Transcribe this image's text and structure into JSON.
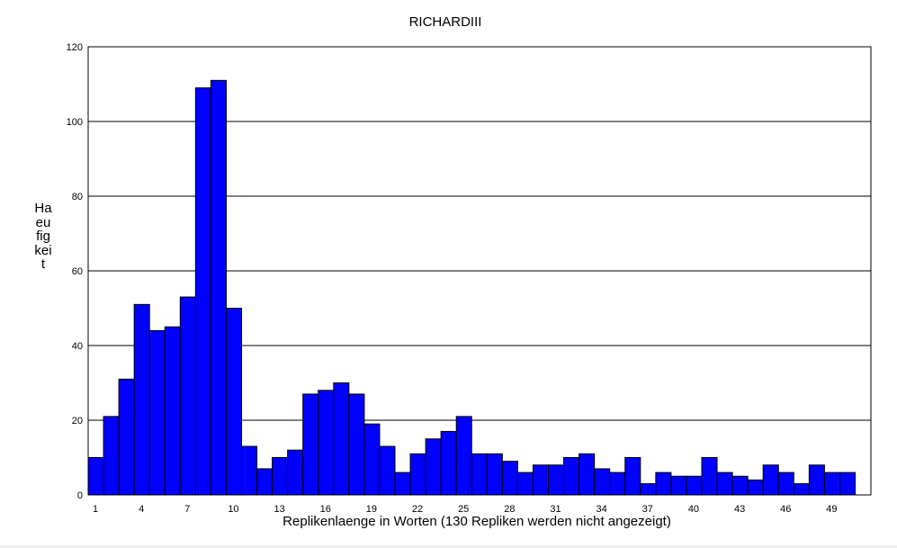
{
  "chart_data": {
    "type": "bar",
    "title": "RICHARDIII",
    "xlabel": "Replikenlaenge in Worten (130 Repliken werden nicht angezeigt)",
    "ylabel": "Haeufigkeit",
    "ylim": [
      0,
      120
    ],
    "yticks": [
      0,
      20,
      40,
      60,
      80,
      100,
      120
    ],
    "xtick_labels": [
      "1",
      "4",
      "7",
      "10",
      "13",
      "16",
      "19",
      "22",
      "25",
      "28",
      "31",
      "34",
      "37",
      "40",
      "43",
      "46",
      "49"
    ],
    "grid": true,
    "bar_color": "#0000ff",
    "categories": [
      1,
      2,
      3,
      4,
      5,
      6,
      7,
      8,
      9,
      10,
      11,
      12,
      13,
      14,
      15,
      16,
      17,
      18,
      19,
      20,
      21,
      22,
      23,
      24,
      25,
      26,
      27,
      28,
      29,
      30,
      31,
      32,
      33,
      34,
      35,
      36,
      37,
      38,
      39,
      40,
      41,
      42,
      43,
      44,
      45,
      46,
      47,
      48,
      49,
      50
    ],
    "values": [
      10,
      21,
      31,
      51,
      44,
      45,
      53,
      109,
      111,
      50,
      13,
      7,
      10,
      12,
      27,
      28,
      30,
      27,
      19,
      13,
      6,
      11,
      15,
      17,
      21,
      11,
      11,
      9,
      6,
      8,
      8,
      10,
      11,
      7,
      6,
      10,
      3,
      6,
      5,
      5,
      10,
      6,
      5,
      4,
      8,
      6,
      3,
      8,
      6,
      6
    ]
  }
}
